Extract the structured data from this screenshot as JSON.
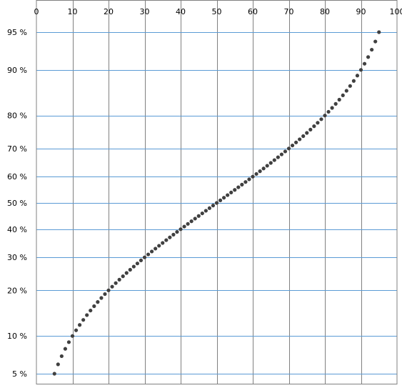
{
  "chart_data": {
    "type": "scatter",
    "title": "",
    "xlabel": "",
    "ylabel": "",
    "y_scale": "normal-probability",
    "xlim": [
      0,
      100
    ],
    "ylim_percent": [
      5,
      95
    ],
    "x_ticks": [
      0,
      10,
      20,
      30,
      40,
      50,
      60,
      70,
      80,
      90,
      100
    ],
    "x_tick_labels": [
      "0",
      "10",
      "20",
      "30",
      "40",
      "50",
      "60",
      "70",
      "80",
      "90",
      "100"
    ],
    "y_ticks_percent": [
      5,
      10,
      20,
      30,
      40,
      50,
      60,
      70,
      80,
      90,
      95
    ],
    "y_tick_labels": [
      "5 %",
      "10 %",
      "20 %",
      "30 %",
      "40 %",
      "50 %",
      "60 %",
      "70 %",
      "80 %",
      "90 %",
      "95 %"
    ],
    "grid": true,
    "legend": "none",
    "marker_color": "#404040",
    "x_grid_color": "#808080",
    "y_grid_color": "#5b9bd5",
    "series": [
      {
        "x": [
          5,
          6,
          7,
          8,
          9,
          10,
          11,
          12,
          13,
          14,
          15,
          16,
          17,
          18,
          19,
          20,
          21,
          22,
          23,
          24,
          25,
          26,
          27,
          28,
          29,
          30,
          31,
          32,
          33,
          34,
          35,
          36,
          37,
          38,
          39,
          40,
          41,
          42,
          43,
          44,
          45,
          46,
          47,
          48,
          49,
          50,
          51,
          52,
          53,
          54,
          55,
          56,
          57,
          58,
          59,
          60,
          61,
          62,
          63,
          64,
          65,
          66,
          67,
          68,
          69,
          70,
          71,
          72,
          73,
          74,
          75,
          76,
          77,
          78,
          79,
          80,
          81,
          82,
          83,
          84,
          85,
          86,
          87,
          88,
          89,
          90,
          91,
          92,
          93,
          94,
          95
        ],
        "y": [
          5,
          6,
          7,
          8,
          9,
          10,
          11,
          12,
          13,
          14,
          15,
          16,
          17,
          18,
          19,
          20,
          21,
          22,
          23,
          24,
          25,
          26,
          27,
          28,
          29,
          30,
          31,
          32,
          33,
          34,
          35,
          36,
          37,
          38,
          39,
          40,
          41,
          42,
          43,
          44,
          45,
          46,
          47,
          48,
          49,
          50,
          51,
          52,
          53,
          54,
          55,
          56,
          57,
          58,
          59,
          60,
          61,
          62,
          63,
          64,
          65,
          66,
          67,
          68,
          69,
          70,
          71,
          72,
          73,
          74,
          75,
          76,
          77,
          78,
          79,
          80,
          81,
          82,
          83,
          84,
          85,
          86,
          87,
          88,
          89,
          90,
          91,
          92,
          93,
          94,
          95
        ]
      }
    ]
  }
}
